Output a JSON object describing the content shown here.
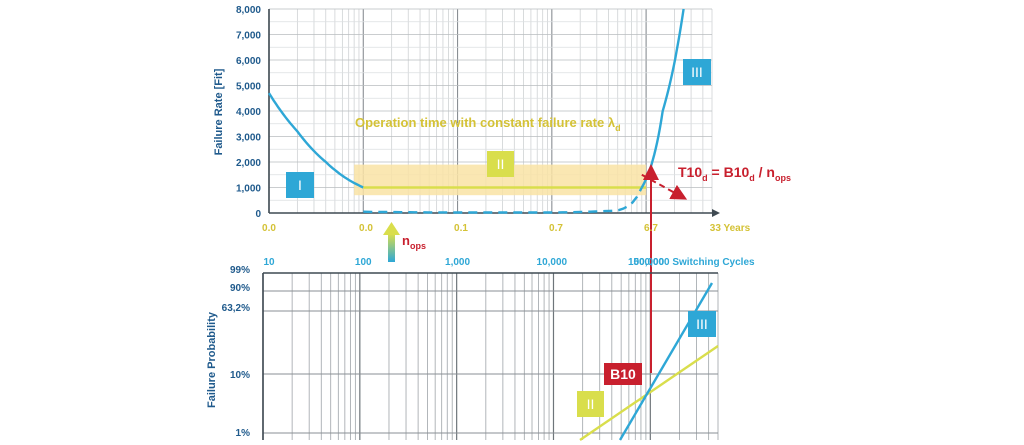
{
  "chart_data": [
    {
      "type": "line",
      "title": "",
      "ylabel": "Failure Rate [Fit]",
      "ylim": [
        0,
        8000
      ],
      "yticks": [
        "0",
        "1,000",
        "2,000",
        "3,000",
        "4,000",
        "5,000",
        "6,000",
        "7,000",
        "8,000"
      ],
      "ytick_values": [
        0,
        1000,
        2000,
        3000,
        4000,
        5000,
        6000,
        7000,
        8000
      ],
      "xticks_years": [
        "0.0",
        "0.0",
        "0.1",
        "0.7",
        "6.7",
        "33 Years"
      ],
      "xticks_cycles": [
        "10",
        "100",
        "1,000",
        "10,000",
        "100,000",
        "500,000 Switching Cycles"
      ],
      "xticks_cycle_values": [
        10,
        100,
        1000,
        10000,
        100000,
        500000
      ],
      "xlim_cycles": [
        10,
        500000
      ],
      "x_scale": "log",
      "grid": true,
      "annotation_text": "Operation time with constant failure rate λ",
      "annotation_sub": "d",
      "formula": {
        "t10": "T10",
        "t10_sub": "d",
        "eq": " = B10",
        "b10_sub": "d",
        "slash": " / n",
        "nops_sub": "ops"
      },
      "nops_label": "n",
      "nops_sub": "ops",
      "regions": [
        "I",
        "II",
        "III"
      ],
      "series": [
        {
          "values_x": [
            10,
            20,
            40,
            70,
            100
          ],
          "values_y": [
            4700,
            3200,
            2000,
            1300,
            1000
          ]
        },
        {
          "values_x": [
            100,
            1000,
            100000
          ],
          "values_y": [
            1000,
            1000,
            1000
          ]
        },
        {
          "values_x": [
            100,
            300,
            1000,
            10000,
            50000,
            90000
          ],
          "values_y": [
            50,
            30,
            20,
            20,
            100,
            1000
          ]
        },
        {
          "values_x": [
            90000,
            150000,
            250000
          ],
          "values_y": [
            1000,
            4000,
            8000
          ]
        },
        {
          "values_x": [
            90000,
            250000
          ],
          "values_y": [
            1500,
            600
          ]
        }
      ],
      "band_y": [
        700,
        1900
      ],
      "band_x": [
        80,
        100000
      ],
      "colors": {
        "blue": "#2ea7d6",
        "yellow": "#d9de4c",
        "band": "#f9e3a4",
        "red": "#c8202e",
        "label_yellow": "#d4c236"
      }
    },
    {
      "type": "line",
      "ylabel": "Failure Probability",
      "yticks": [
        "99%",
        "90%",
        "63,2%",
        "10%",
        "1%"
      ],
      "ytick_values": [
        99,
        90,
        63.2,
        10,
        1
      ],
      "y_scale": "weibull",
      "grid": true,
      "regions": [
        "II",
        "III"
      ],
      "b10_label": "B10",
      "series": [
        {
          "values_x": [
            15000,
            500000
          ],
          "values_y": [
            0.5,
            20
          ]
        },
        {
          "values_x": [
            40000,
            400000
          ],
          "values_y": [
            0.7,
            75
          ]
        }
      ]
    }
  ]
}
